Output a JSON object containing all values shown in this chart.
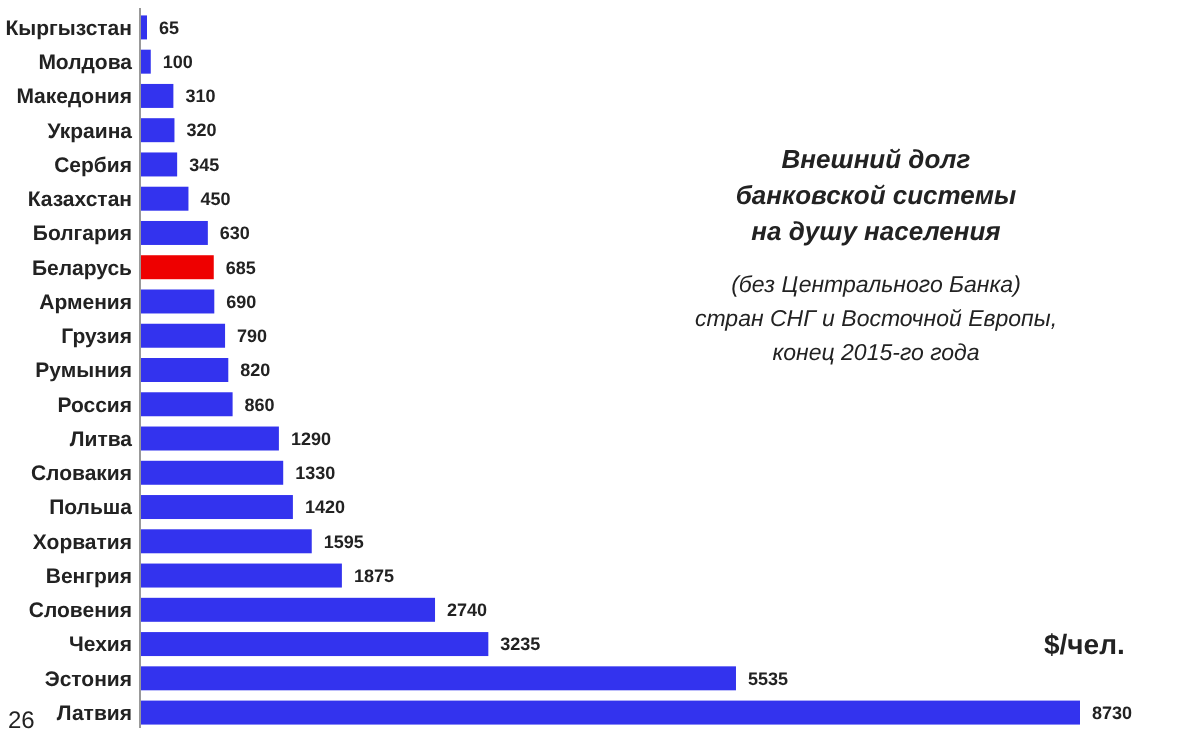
{
  "chart_data": {
    "type": "bar",
    "orientation": "horizontal",
    "title": "Внешний долг банковской системы на душу населения",
    "subtitle": "(без Центрального Банка) стран СНГ и Восточной Европы, конец 2015-го года",
    "categories": [
      "Кыргызстан",
      "Молдова",
      "Македония",
      "Украина",
      "Сербия",
      "Казахстан",
      "Болгария",
      "Беларусь",
      "Армения",
      "Грузия",
      "Румыния",
      "Россия",
      "Литва",
      "Словакия",
      "Польша",
      "Хорватия",
      "Венгрия",
      "Словения",
      "Чехия",
      "Эстония",
      "Латвия"
    ],
    "values": [
      65,
      100,
      310,
      320,
      345,
      450,
      630,
      685,
      690,
      790,
      820,
      860,
      1290,
      1330,
      1420,
      1595,
      1875,
      2740,
      3235,
      5535,
      8730
    ],
    "colors": [
      "#3333ee",
      "#3333ee",
      "#3333ee",
      "#3333ee",
      "#3333ee",
      "#3333ee",
      "#3333ee",
      "#ee0000",
      "#3333ee",
      "#3333ee",
      "#3333ee",
      "#3333ee",
      "#3333ee",
      "#3333ee",
      "#3333ee",
      "#3333ee",
      "#3333ee",
      "#3333ee",
      "#3333ee",
      "#3333ee",
      "#3333ee"
    ],
    "data_labels": true,
    "annotations": [
      "$/чел.",
      "26"
    ]
  }
}
